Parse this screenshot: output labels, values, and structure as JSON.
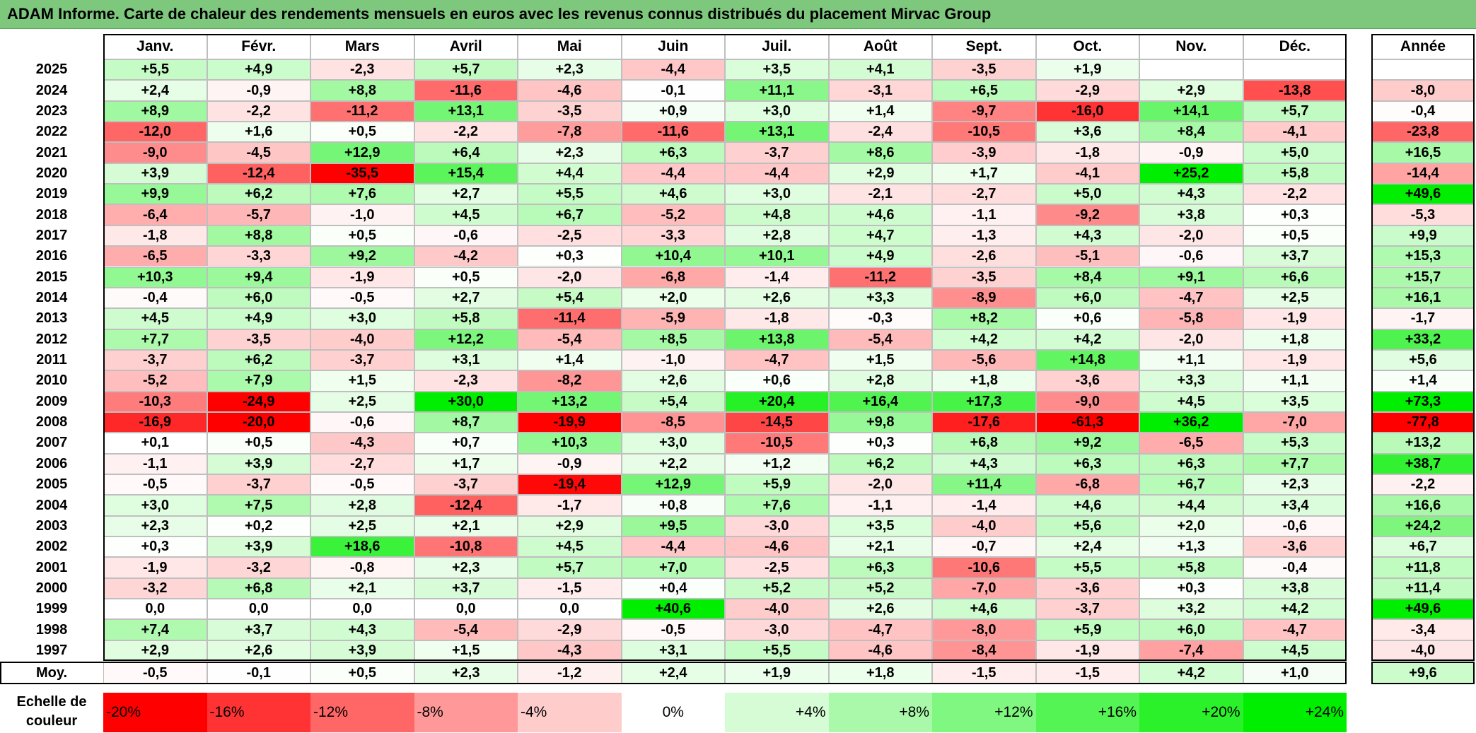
{
  "title": "ADAM Informe. Carte de chaleur des rendements mensuels en euros avec les revenus connus distribués du placement Mirvac Group",
  "chart_data": {
    "type": "heatmap",
    "columns": [
      "Janv.",
      "Févr.",
      "Mars",
      "Avril",
      "Mai",
      "Juin",
      "Juil.",
      "Août",
      "Sept.",
      "Oct.",
      "Nov.",
      "Déc."
    ],
    "year_column": "Année",
    "rows": [
      {
        "year": "2025",
        "values": [
          "+5,5",
          "+4,9",
          "-2,3",
          "+5,7",
          "+2,3",
          "-4,4",
          "+3,5",
          "+4,1",
          "-3,5",
          "+1,9",
          "",
          ""
        ],
        "annual": ""
      },
      {
        "year": "2024",
        "values": [
          "+2,4",
          "-0,9",
          "+8,8",
          "-11,6",
          "-4,6",
          "-0,1",
          "+11,1",
          "-3,1",
          "+6,5",
          "-2,9",
          "+2,9",
          "-13,8"
        ],
        "annual": "-8,0"
      },
      {
        "year": "2023",
        "values": [
          "+8,9",
          "-2,2",
          "-11,2",
          "+13,1",
          "-3,5",
          "+0,9",
          "+3,0",
          "+1,4",
          "-9,7",
          "-16,0",
          "+14,1",
          "+5,7"
        ],
        "annual": "-0,4"
      },
      {
        "year": "2022",
        "values": [
          "-12,0",
          "+1,6",
          "+0,5",
          "-2,2",
          "-7,8",
          "-11,6",
          "+13,1",
          "-2,4",
          "-10,5",
          "+3,6",
          "+8,4",
          "-4,1"
        ],
        "annual": "-23,8"
      },
      {
        "year": "2021",
        "values": [
          "-9,0",
          "-4,5",
          "+12,9",
          "+6,4",
          "+2,3",
          "+6,3",
          "-3,7",
          "+8,6",
          "-3,9",
          "-1,8",
          "-0,9",
          "+5,0"
        ],
        "annual": "+16,5"
      },
      {
        "year": "2020",
        "values": [
          "+3,9",
          "-12,4",
          "-35,5",
          "+15,4",
          "+4,4",
          "-4,4",
          "-4,4",
          "+2,9",
          "+1,7",
          "-4,1",
          "+25,2",
          "+5,8"
        ],
        "annual": "-14,4"
      },
      {
        "year": "2019",
        "values": [
          "+9,9",
          "+6,2",
          "+7,6",
          "+2,7",
          "+5,5",
          "+4,6",
          "+3,0",
          "-2,1",
          "-2,7",
          "+5,0",
          "+4,3",
          "-2,2"
        ],
        "annual": "+49,6"
      },
      {
        "year": "2018",
        "values": [
          "-6,4",
          "-5,7",
          "-1,0",
          "+4,5",
          "+6,7",
          "-5,2",
          "+4,8",
          "+4,6",
          "-1,1",
          "-9,2",
          "+3,8",
          "+0,3"
        ],
        "annual": "-5,3"
      },
      {
        "year": "2017",
        "values": [
          "-1,8",
          "+8,8",
          "+0,5",
          "-0,6",
          "-2,5",
          "-3,3",
          "+2,8",
          "+4,7",
          "-1,3",
          "+4,3",
          "-2,0",
          "+0,5"
        ],
        "annual": "+9,9"
      },
      {
        "year": "2016",
        "values": [
          "-6,5",
          "-3,3",
          "+9,2",
          "-4,2",
          "+0,3",
          "+10,4",
          "+10,1",
          "+4,9",
          "-2,6",
          "-5,1",
          "-0,6",
          "+3,7"
        ],
        "annual": "+15,3"
      },
      {
        "year": "2015",
        "values": [
          "+10,3",
          "+9,4",
          "-1,9",
          "+0,5",
          "-2,0",
          "-6,8",
          "-1,4",
          "-11,2",
          "-3,5",
          "+8,4",
          "+9,1",
          "+6,6"
        ],
        "annual": "+15,7"
      },
      {
        "year": "2014",
        "values": [
          "-0,4",
          "+6,0",
          "-0,5",
          "+2,7",
          "+5,4",
          "+2,0",
          "+2,6",
          "+3,3",
          "-8,9",
          "+6,0",
          "-4,7",
          "+2,5"
        ],
        "annual": "+16,1"
      },
      {
        "year": "2013",
        "values": [
          "+4,5",
          "+4,9",
          "+3,0",
          "+5,8",
          "-11,4",
          "-5,9",
          "-1,8",
          "-0,3",
          "+8,2",
          "+0,6",
          "-5,8",
          "-1,9"
        ],
        "annual": "-1,7"
      },
      {
        "year": "2012",
        "values": [
          "+7,7",
          "-3,5",
          "-4,0",
          "+12,2",
          "-5,4",
          "+8,5",
          "+13,8",
          "-5,4",
          "+4,2",
          "+4,2",
          "-2,0",
          "+1,8"
        ],
        "annual": "+33,2"
      },
      {
        "year": "2011",
        "values": [
          "-3,7",
          "+6,2",
          "-3,7",
          "+3,1",
          "+1,4",
          "-1,0",
          "-4,7",
          "+1,5",
          "-5,6",
          "+14,8",
          "+1,1",
          "-1,9"
        ],
        "annual": "+5,6"
      },
      {
        "year": "2010",
        "values": [
          "-5,2",
          "+7,9",
          "+1,5",
          "-2,3",
          "-8,2",
          "+2,6",
          "+0,6",
          "+2,8",
          "+1,8",
          "-3,6",
          "+3,3",
          "+1,1"
        ],
        "annual": "+1,4"
      },
      {
        "year": "2009",
        "values": [
          "-10,3",
          "-24,9",
          "+2,5",
          "+30,0",
          "+13,2",
          "+5,4",
          "+20,4",
          "+16,4",
          "+17,3",
          "-9,0",
          "+4,5",
          "+3,5"
        ],
        "annual": "+73,3"
      },
      {
        "year": "2008",
        "values": [
          "-16,9",
          "-20,0",
          "-0,6",
          "+8,7",
          "-19,9",
          "-8,5",
          "-14,5",
          "+9,8",
          "-17,6",
          "-61,3",
          "+36,2",
          "-7,0"
        ],
        "annual": "-77,8"
      },
      {
        "year": "2007",
        "values": [
          "+0,1",
          "+0,5",
          "-4,3",
          "+0,7",
          "+10,3",
          "+3,0",
          "-10,5",
          "+0,3",
          "+6,8",
          "+9,2",
          "-6,5",
          "+5,3"
        ],
        "annual": "+13,2"
      },
      {
        "year": "2006",
        "values": [
          "-1,1",
          "+3,9",
          "-2,7",
          "+1,7",
          "-0,9",
          "+2,2",
          "+1,2",
          "+6,2",
          "+4,3",
          "+6,3",
          "+6,3",
          "+7,7"
        ],
        "annual": "+38,7"
      },
      {
        "year": "2005",
        "values": [
          "-0,5",
          "-3,7",
          "-0,5",
          "-3,7",
          "-19,4",
          "+12,9",
          "+5,9",
          "-2,0",
          "+11,4",
          "-6,8",
          "+6,7",
          "+2,3"
        ],
        "annual": "-2,2"
      },
      {
        "year": "2004",
        "values": [
          "+3,0",
          "+7,5",
          "+2,8",
          "-12,4",
          "-1,7",
          "+0,8",
          "+7,6",
          "-1,1",
          "-1,4",
          "+4,6",
          "+4,4",
          "+3,4"
        ],
        "annual": "+16,6"
      },
      {
        "year": "2003",
        "values": [
          "+2,3",
          "+0,2",
          "+2,5",
          "+2,1",
          "+2,9",
          "+9,5",
          "-3,0",
          "+3,5",
          "-4,0",
          "+5,6",
          "+2,0",
          "-0,6"
        ],
        "annual": "+24,2"
      },
      {
        "year": "2002",
        "values": [
          "+0,3",
          "+3,9",
          "+18,6",
          "-10,8",
          "+4,5",
          "-4,4",
          "-4,6",
          "+2,1",
          "-0,7",
          "+2,4",
          "+1,3",
          "-3,6"
        ],
        "annual": "+6,7"
      },
      {
        "year": "2001",
        "values": [
          "-1,9",
          "-3,2",
          "-0,8",
          "+2,3",
          "+5,7",
          "+7,0",
          "-2,5",
          "+6,3",
          "-10,6",
          "+5,5",
          "+5,8",
          "-0,4"
        ],
        "annual": "+11,8"
      },
      {
        "year": "2000",
        "values": [
          "-3,2",
          "+6,8",
          "+2,1",
          "+3,7",
          "-1,5",
          "+0,4",
          "+5,2",
          "+5,2",
          "-7,0",
          "-3,6",
          "+0,3",
          "+3,8"
        ],
        "annual": "+11,4"
      },
      {
        "year": "1999",
        "values": [
          "0,0",
          "0,0",
          "0,0",
          "0,0",
          "0,0",
          "+40,6",
          "-4,0",
          "+2,6",
          "+4,6",
          "-3,7",
          "+3,2",
          "+4,2"
        ],
        "annual": "+49,6"
      },
      {
        "year": "1998",
        "values": [
          "+7,4",
          "+3,7",
          "+4,3",
          "-5,4",
          "-2,9",
          "-0,5",
          "-3,0",
          "-4,7",
          "-8,0",
          "+5,9",
          "+6,0",
          "-4,7"
        ],
        "annual": "-3,4"
      },
      {
        "year": "1997",
        "values": [
          "+2,9",
          "+2,6",
          "+3,9",
          "+1,5",
          "-4,3",
          "+3,1",
          "+5,5",
          "-4,6",
          "-8,4",
          "-1,9",
          "-7,4",
          "+4,5"
        ],
        "annual": "-4,0"
      }
    ],
    "average": {
      "label": "Moy.",
      "values": [
        "-0,5",
        "-0,1",
        "+0,5",
        "+2,3",
        "-1,2",
        "+2,4",
        "+1,9",
        "+1,8",
        "-1,5",
        "-1,5",
        "+4,2",
        "+1,0"
      ],
      "annual": "+9,6"
    },
    "color_scale": {
      "label": "Echelle de couleur",
      "stops": [
        "-20%",
        "-16%",
        "-12%",
        "-8%",
        "-4%",
        "0%",
        "+4%",
        "+8%",
        "+12%",
        "+16%",
        "+20%",
        "+24%"
      ],
      "negative_color": "#ff0000",
      "neutral_color": "#ffffff",
      "positive_color": "#00ee00"
    }
  }
}
